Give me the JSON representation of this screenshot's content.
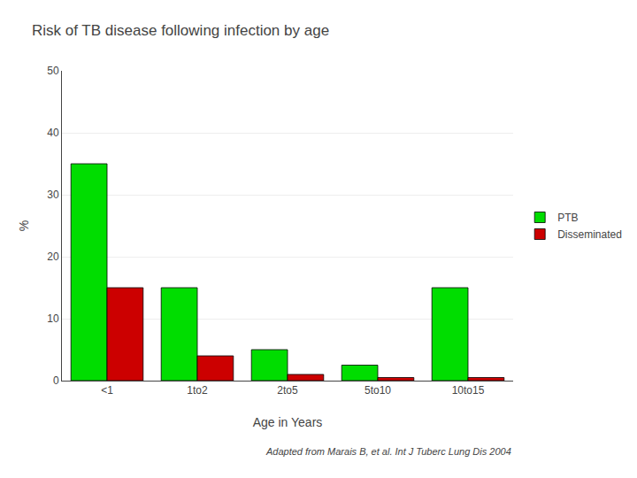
{
  "chart_data": {
    "type": "bar",
    "title": "Risk of TB disease following infection by age",
    "categories": [
      "<1",
      "1to2",
      "2to5",
      "5to10",
      "10to15"
    ],
    "series": [
      {
        "name": "PTB",
        "color": "#00dd00",
        "values": [
          35,
          15,
          5,
          2.5,
          15
        ]
      },
      {
        "name": "Disseminated",
        "color": "#cc0000",
        "values": [
          15,
          4,
          1,
          0.5,
          0.5
        ]
      }
    ],
    "xlabel": "Age in Years",
    "ylabel": "%",
    "ylim": [
      0,
      50
    ],
    "yticks": [
      0,
      10,
      20,
      30,
      40,
      50
    ],
    "grid": true,
    "legend": "right",
    "annotations": [
      "Adapted from Marais B, et al. Int J Tuberc Lung Dis 2004"
    ]
  }
}
